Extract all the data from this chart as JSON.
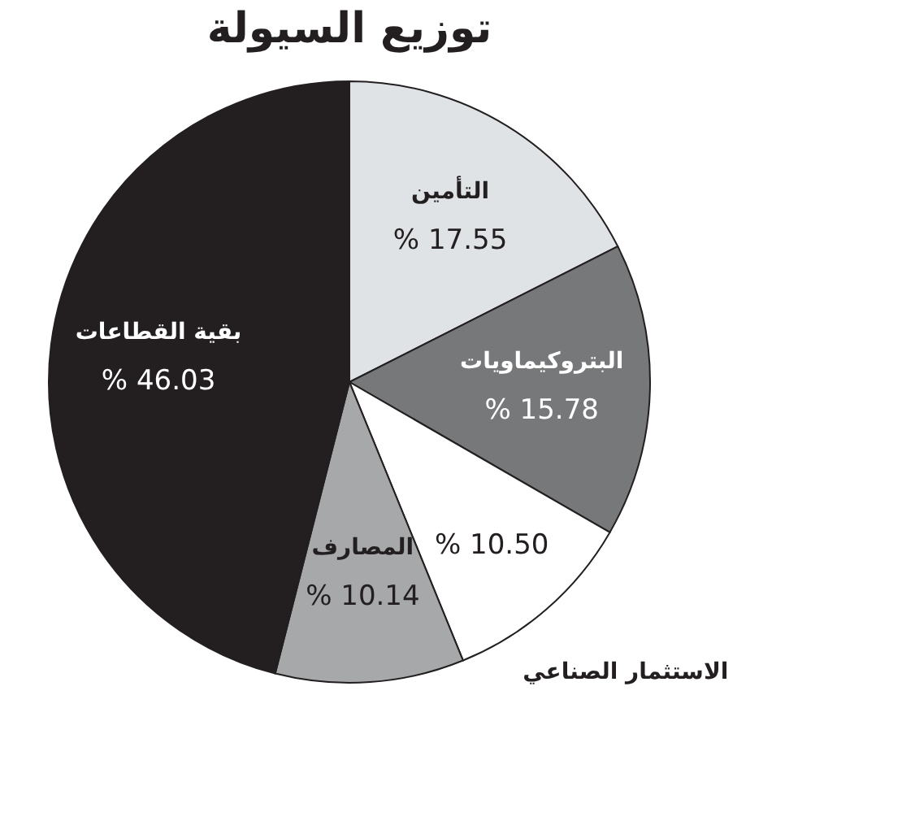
{
  "chart_data": {
    "type": "pie",
    "title": "توزيع السيولة",
    "categories": [
      "التأمين",
      "البتروكيماويات",
      "الاستثمار الصناعي",
      "المصارف",
      "بقية القطاعات"
    ],
    "values": [
      17.55,
      15.78,
      10.5,
      10.14,
      46.03
    ],
    "colors": [
      "#dfe3e6",
      "#76787a",
      "#ffffff",
      "#a6a8aa",
      "#231f20"
    ],
    "value_labels": [
      "% 17.55",
      "% 15.78",
      "% 10.50",
      "% 10.14",
      "% 46.03"
    ],
    "legend": false
  }
}
